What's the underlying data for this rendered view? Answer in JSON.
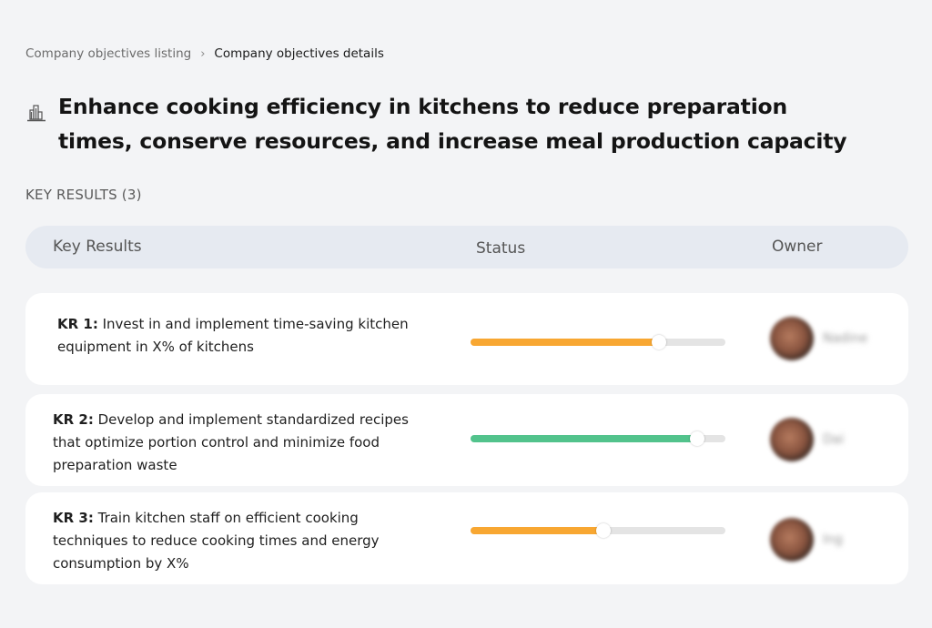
{
  "breadcrumb": {
    "parent": "Company objectives listing",
    "separator": "›",
    "current": "Company objectives details"
  },
  "objective": {
    "icon": "building-chart-icon",
    "title": "Enhance cooking efficiency in kitchens to reduce preparation times, conserve resources, and increase meal production capacity"
  },
  "key_results_section": {
    "label": "KEY RESULTS (3)"
  },
  "table": {
    "headers": {
      "key_results": "Key Results",
      "status": "Status",
      "owner": "Owner"
    },
    "rows": [
      {
        "label": "KR 1:",
        "text": " Invest in and implement time-saving kitchen equipment in X% of kitchens",
        "progress": 74,
        "color": "#f8a732",
        "owner": "Nadine"
      },
      {
        "label": "KR 2:",
        "text": " Develop and implement standardized recipes that optimize portion control and minimize food preparation waste",
        "progress": 89,
        "color": "#52c38c",
        "owner": "Dai"
      },
      {
        "label": "KR 3:",
        "text": " Train kitchen staff on efficient cooking techniques to reduce cooking times and energy consumption by X%",
        "progress": 52,
        "color": "#f8a732",
        "owner": "Ing"
      }
    ]
  },
  "colors": {
    "background": "#f3f4f6",
    "header_bg": "#e6eaf1",
    "track": "#e4e4e4",
    "orange": "#f8a732",
    "green": "#52c38c"
  }
}
